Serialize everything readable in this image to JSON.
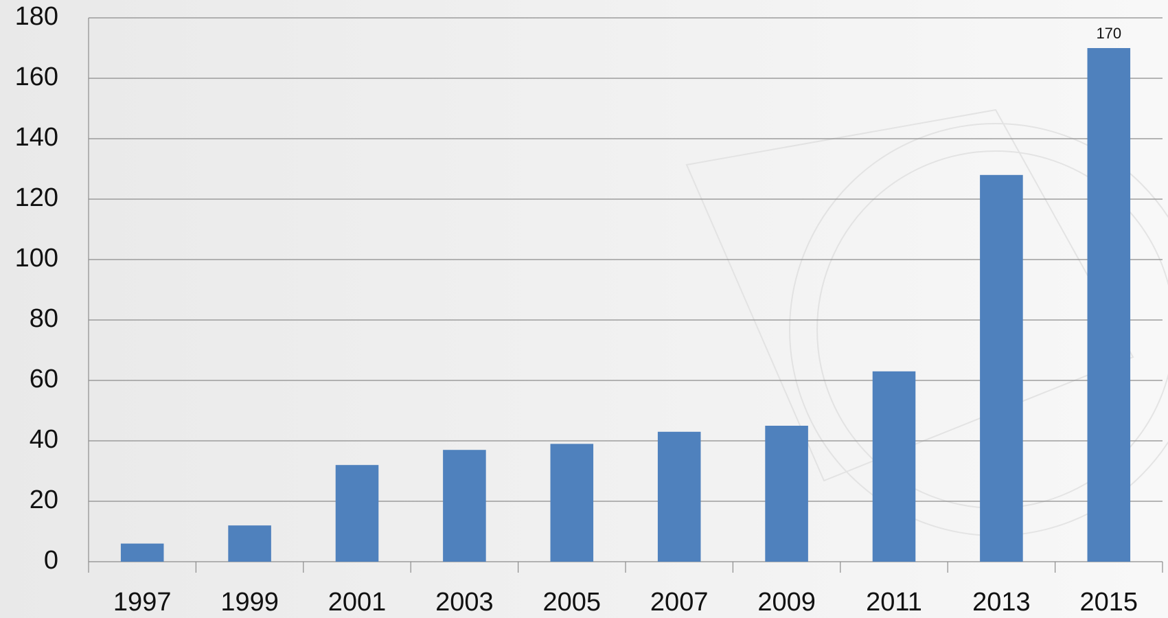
{
  "chart_data": {
    "type": "bar",
    "categories": [
      "1997",
      "1999",
      "2001",
      "2003",
      "2005",
      "2007",
      "2009",
      "2011",
      "2013",
      "2015"
    ],
    "values": [
      6,
      12,
      32,
      37,
      39,
      43,
      45,
      63,
      128,
      170
    ],
    "value_labels": [
      null,
      null,
      null,
      null,
      null,
      null,
      null,
      null,
      null,
      "170"
    ],
    "color": "#4f81bd",
    "ylim": [
      0,
      180
    ],
    "yticks": [
      0,
      20,
      40,
      60,
      80,
      100,
      120,
      140,
      160,
      180
    ],
    "grid": true
  }
}
